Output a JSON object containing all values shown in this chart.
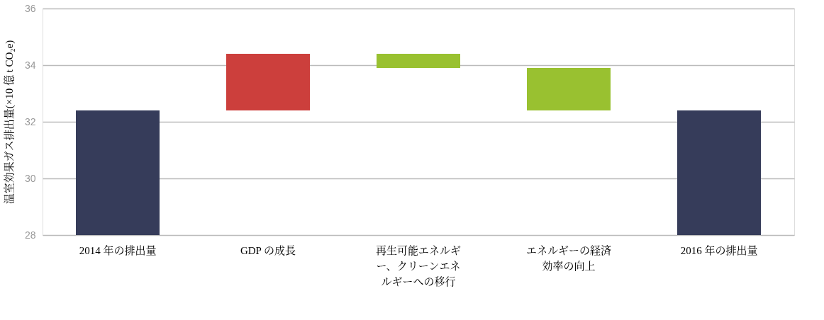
{
  "chart_data": {
    "type": "bar",
    "ylabel": "温室効果ガス排出量(×10 億 t CO₂e)",
    "categories": [
      "2014 年の排出量",
      "GDP の成長",
      "再生可能エネルギー、クリーンエネルギーへの移行",
      "エネルギーの経済効率の向上",
      "2016 年の排出量"
    ],
    "values": [
      4.4,
      2.0,
      -0.5,
      -1.5,
      4.4
    ],
    "base": [
      28,
      32.4,
      34.4,
      33.9,
      28
    ],
    "colors": [
      "#363c5a",
      "#cc3f3c",
      "#99c130",
      "#99c130",
      "#363c5a"
    ],
    "ylim": [
      28,
      36
    ],
    "yticks": [
      28,
      30,
      32,
      34,
      36
    ],
    "grid": "y"
  }
}
